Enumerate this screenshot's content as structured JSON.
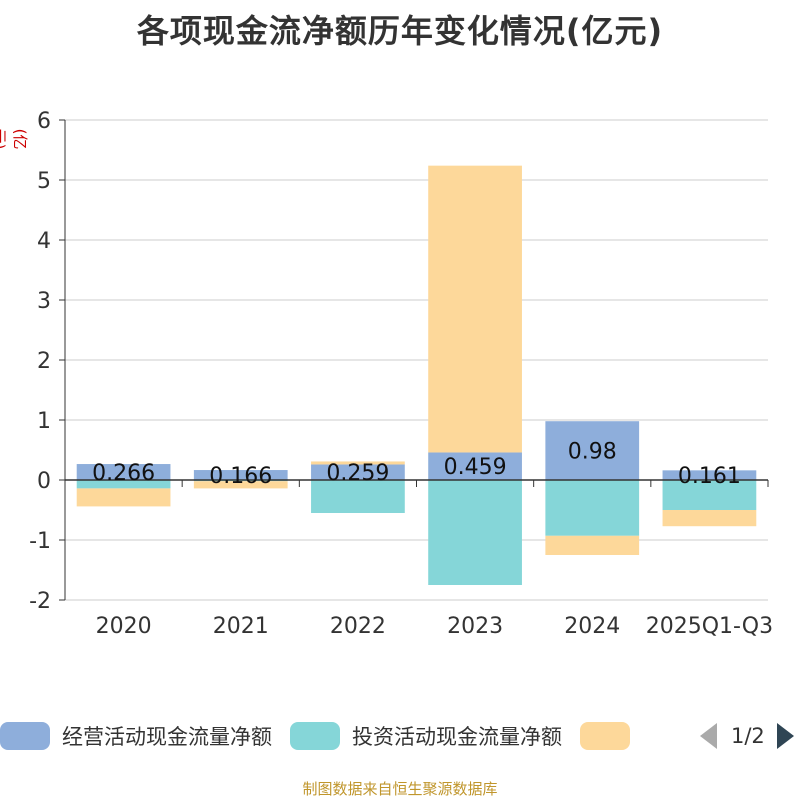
{
  "colors": {
    "operating": "#8eaedb",
    "investing": "#85d6d8",
    "financing": "#fdd89a",
    "unit_text": "#cc0000",
    "source_text": "#c0962c"
  },
  "chart_data": {
    "type": "bar",
    "stacked": true,
    "title": "各项现金流净额历年变化情况(亿元)",
    "ylabel": "(亿元)",
    "ylim": [
      -2,
      6
    ],
    "yticks": [
      -2,
      -1,
      0,
      1,
      2,
      3,
      4,
      5,
      6
    ],
    "categories": [
      "2020",
      "2021",
      "2022",
      "2023",
      "2024",
      "2025Q1-Q3"
    ],
    "series": [
      {
        "name": "经营活动现金流量净额",
        "values": [
          0.266,
          0.166,
          0.259,
          0.459,
          0.98,
          0.161
        ],
        "labels": [
          "0.266",
          "0.166",
          "0.259",
          "0.459",
          "0.98",
          "0.161"
        ]
      },
      {
        "name": "投资活动现金流量净额",
        "values": [
          -0.14,
          -0.02,
          -0.55,
          -1.75,
          -0.93,
          -0.5
        ]
      },
      {
        "name": "",
        "values": [
          -0.3,
          -0.12,
          0.05,
          4.78,
          -0.32,
          -0.27
        ]
      }
    ],
    "grid": true,
    "legend_position": "bottom"
  },
  "legend": {
    "items": [
      "经营活动现金流量净额",
      "投资活动现金流量净额",
      ""
    ],
    "page_indicator": "1/2"
  },
  "source": "制图数据来自恒生聚源数据库"
}
